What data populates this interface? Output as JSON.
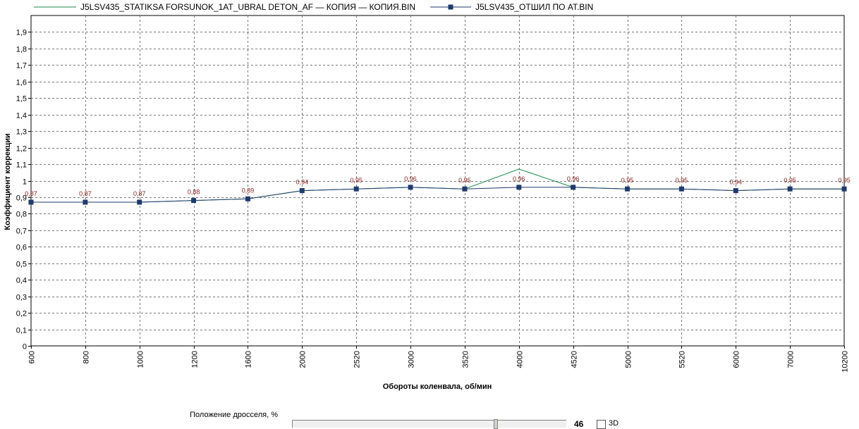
{
  "chart_data": {
    "type": "line",
    "categories": [
      "600",
      "800",
      "1000",
      "1200",
      "1600",
      "2000",
      "2520",
      "3000",
      "3520",
      "4000",
      "4520",
      "5000",
      "5520",
      "6000",
      "7000",
      "10200"
    ],
    "xlabel": "Обороты коленвала, об/мин",
    "ylabel": "Коэффициент коррекции",
    "ylim": [
      0,
      2
    ],
    "yticks": [
      "0",
      "0,1",
      "0,2",
      "0,3",
      "0,4",
      "0,5",
      "0,6",
      "0,7",
      "0,8",
      "0,9",
      "1",
      "1,1",
      "1,2",
      "1,3",
      "1,4",
      "1,5",
      "1,6",
      "1,7",
      "1,8",
      "1,9"
    ],
    "grid": true,
    "legend_position": "top",
    "series": [
      {
        "name": "J5LSV435_STATIKSA FORSUNOK_1AT_UBRAL DETON_AF — КОПИЯ — КОПИЯ.BIN",
        "color": "#1a8a4a",
        "marker": "none",
        "values": [
          0.87,
          0.87,
          0.87,
          0.88,
          0.89,
          0.94,
          0.95,
          0.96,
          0.95,
          1.07,
          0.96,
          0.95,
          0.95,
          0.94,
          0.95,
          0.95
        ]
      },
      {
        "name": "J5LSV435_ОТШИЛ ПО AT.BIN",
        "color": "#1f3a6e",
        "marker": "square",
        "values": [
          0.87,
          0.87,
          0.87,
          0.88,
          0.89,
          0.94,
          0.95,
          0.96,
          0.95,
          0.96,
          0.96,
          0.95,
          0.95,
          0.94,
          0.95,
          0.95
        ]
      }
    ],
    "data_labels": [
      "0,87",
      "0,87",
      "0,87",
      "0,88",
      "0,89",
      "0,94",
      "0,95",
      "0,96",
      "0,95",
      "0,96",
      "0,96",
      "0,95",
      "0,95",
      "0,94",
      "0,95",
      "0,95"
    ]
  },
  "throttle": {
    "label": "Положение дросселя, %",
    "value": "46",
    "checkbox_label": "3D",
    "checked": false
  }
}
